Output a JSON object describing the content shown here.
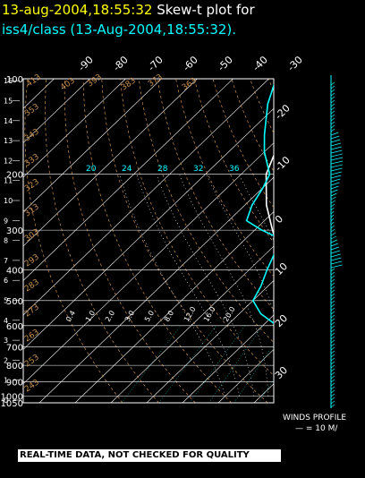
{
  "header": {
    "date_text": "13-aug-2004,18:55:32",
    "title_text": "Skew-t plot for",
    "subtitle_text": "iss4/class (13-Aug-2004,18:55:32)."
  },
  "banner": {
    "text": "REAL-TIME DATA, NOT CHECKED FOR QUALITY"
  },
  "winds": {
    "label": "WINDS PROFILE",
    "scale": "— = 10 M/"
  },
  "colors": {
    "temperature": "#ffffff",
    "dewpoint": "#00ffff",
    "grid": "#ffffff",
    "isotherm": "#ffffff",
    "dry_adiabat": "#c89050",
    "moist_adiabat": "#ffffff",
    "mixing_ratio": "#00ffff",
    "label_brown": "#c89050"
  },
  "chart_data": {
    "type": "line",
    "subtype": "skew-t",
    "xlabel": "",
    "ylabel": "",
    "pressure_range_hpa": [
      1050,
      100
    ],
    "left_axis_ticks": [
      "0",
      "1",
      "2",
      "3",
      "4",
      "5",
      "6",
      "7",
      "8",
      "9",
      "10",
      "11",
      "12",
      "13",
      "14",
      "15",
      "16"
    ],
    "pressure_labels": [
      {
        "p": 100,
        "label": "100"
      },
      {
        "p": 200,
        "label": "200"
      },
      {
        "p": 300,
        "label": "300"
      },
      {
        "p": 400,
        "label": "400"
      },
      {
        "p": 500,
        "label": "500"
      },
      {
        "p": 600,
        "label": "600"
      },
      {
        "p": 700,
        "label": "700"
      },
      {
        "p": 800,
        "label": "800"
      },
      {
        "p": 900,
        "label": "900"
      },
      {
        "p": 1000,
        "label": "1000"
      },
      {
        "p": 1050,
        "label": "1050"
      }
    ],
    "isotherm_top_labels": [
      "-90",
      "-80",
      "-70",
      "-60",
      "-50",
      "-40",
      "-30"
    ],
    "isotherm_right_labels": [
      "-20",
      "-10",
      "0",
      "10",
      "20",
      "30"
    ],
    "mixing_ratio_labels": [
      "20",
      "24",
      "28",
      "32",
      "36"
    ],
    "dry_adiabat_labels": [
      "413",
      "403",
      "393",
      "383",
      "373",
      "363",
      "353",
      "343",
      "333",
      "323",
      "313",
      "303",
      "293",
      "283",
      "273",
      "263",
      "253",
      "243"
    ],
    "moist_adiabat_labels": [
      "0.4",
      "1.0",
      "2.0",
      "3.0",
      "5.0",
      "8.0",
      "12.0",
      "16.0",
      "20.0"
    ],
    "series": [
      {
        "name": "",
        "pressure_hpa": [
          1030,
          1000,
          950,
          900,
          850,
          800,
          750,
          700,
          650,
          600,
          550,
          500,
          450,
          400,
          350,
          300,
          250,
          200,
          150,
          100
        ],
        "temperature_c": [
          33,
          30,
          26,
          22.5,
          19.5,
          16,
          12,
          8,
          4,
          0,
          -4.5,
          -9,
          -14,
          -20,
          -27,
          -35,
          -44,
          -53,
          -60,
          -67
        ]
      },
      {
        "name": "",
        "pressure_hpa": [
          1030,
          1000,
          950,
          900,
          850,
          800,
          750,
          700,
          650,
          620,
          600,
          550,
          500,
          450,
          400,
          350,
          320,
          300,
          280,
          250,
          220,
          200,
          170,
          150,
          120,
          100
        ],
        "dewpoint_c": [
          22,
          22,
          21,
          18,
          15,
          11,
          7,
          3,
          0,
          -2,
          -6,
          -14,
          -20,
          -22,
          -25,
          -28,
          -30,
          -38,
          -45,
          -48,
          -50,
          -52,
          -60,
          -65,
          -73,
          -78
        ]
      }
    ]
  }
}
